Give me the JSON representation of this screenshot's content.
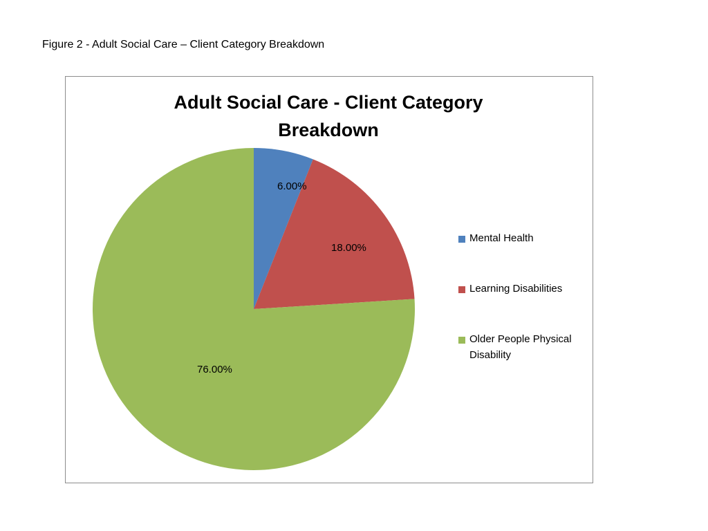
{
  "caption": "Figure 2 - Adult Social Care – Client Category Breakdown",
  "chart_data": {
    "type": "pie",
    "title_lines": [
      "Adult Social Care - Client Category",
      "Breakdown"
    ],
    "categories": [
      "Mental Health",
      "Learning Disabilities",
      "Older People Physical Disability"
    ],
    "values": [
      6.0,
      18.0,
      76.0
    ],
    "value_labels": [
      "6.00%",
      "18.00%",
      "76.00%"
    ],
    "colors": [
      "#4f81bd",
      "#c0504d",
      "#9bbb59"
    ],
    "legend_position": "right",
    "start_angle": "12 o'clock, clockwise"
  },
  "legend": {
    "items": [
      {
        "label": "Mental Health",
        "color": "#4f81bd"
      },
      {
        "label": "Learning Disabilities",
        "color": "#c0504d"
      },
      {
        "label": "Older People Physical Disability",
        "color": "#9bbb59"
      }
    ]
  }
}
